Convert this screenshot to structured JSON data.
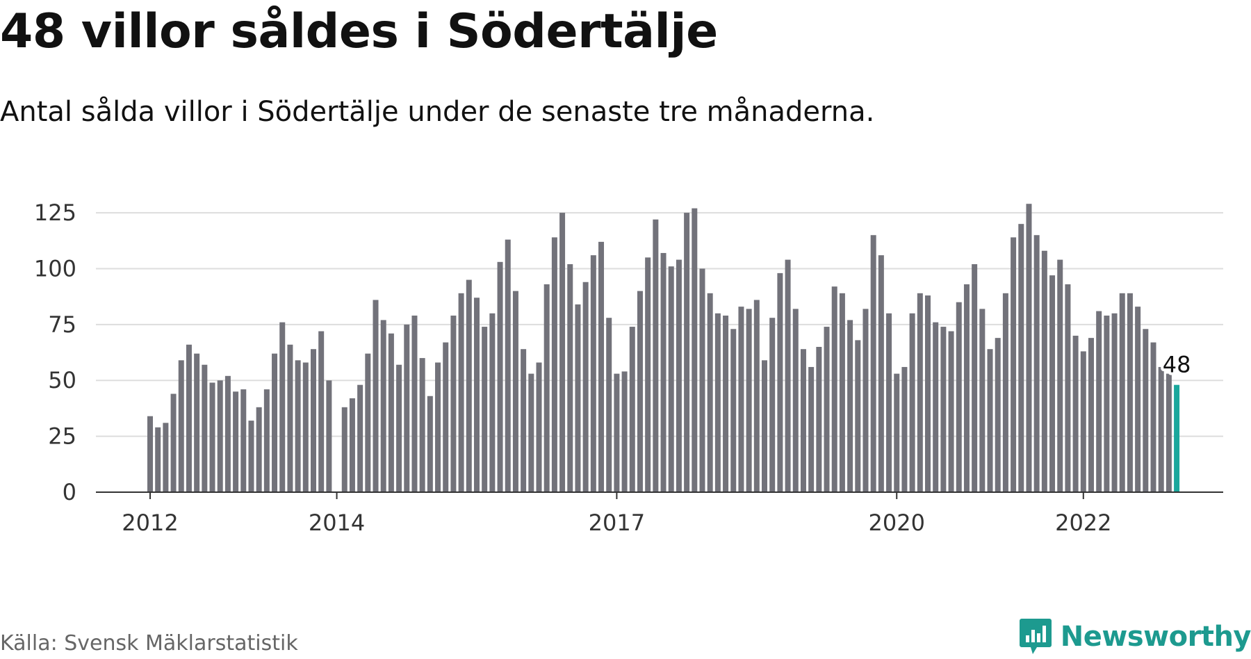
{
  "title": "48 villor såldes i Södertälje",
  "subtitle": "Antal sålda villor i Södertälje under de senaste tre månaderna.",
  "source": "Källa: Svensk Mäklarstatistik",
  "brand": {
    "name": "Newsworthy",
    "icon": "newsworthy-logo-icon",
    "color": "#1d9a8f"
  },
  "colors": {
    "bar": "#72727a",
    "highlight": "#1aa79c",
    "grid": "#dddddd",
    "axis": "#333333"
  },
  "chart_data": {
    "type": "bar",
    "title": "48 villor såldes i Södertälje",
    "subtitle": "Antal sålda villor i Södertälje under de senaste tre månaderna.",
    "ylim": [
      0,
      130
    ],
    "yticks": [
      0,
      25,
      50,
      75,
      100,
      125
    ],
    "ytick_labels": [
      "0",
      "25",
      "50",
      "75",
      "100",
      "125"
    ],
    "grid": true,
    "x_start": "2012-01",
    "x_end": "2023-02",
    "xticks": [
      {
        "x": "2012-01",
        "label": "2012"
      },
      {
        "x": "2014-01",
        "label": "2014"
      },
      {
        "x": "2017-01",
        "label": "2017"
      },
      {
        "x": "2020-01",
        "label": "2020"
      },
      {
        "x": "2022-01",
        "label": "2022"
      }
    ],
    "series": [
      {
        "x": [
          "2012-01",
          "2012-02",
          "2012-03",
          "2012-04",
          "2012-05",
          "2012-06",
          "2012-07",
          "2012-08",
          "2012-09",
          "2012-10",
          "2012-11",
          "2012-12",
          "2013-01",
          "2013-02",
          "2013-03",
          "2013-04",
          "2013-05",
          "2013-06",
          "2013-07",
          "2013-08",
          "2013-09",
          "2013-10",
          "2013-11",
          "2013-12",
          "2014-01",
          "2014-02",
          "2014-03",
          "2014-04",
          "2014-05",
          "2014-06",
          "2014-07",
          "2014-08",
          "2014-09",
          "2014-10",
          "2014-11",
          "2014-12",
          "2015-01",
          "2015-02",
          "2015-03",
          "2015-04",
          "2015-05",
          "2015-06",
          "2015-07",
          "2015-08",
          "2015-09",
          "2015-10",
          "2015-11",
          "2015-12",
          "2016-01",
          "2016-02",
          "2016-03",
          "2016-04",
          "2016-05",
          "2016-06",
          "2016-07",
          "2016-08",
          "2016-09",
          "2016-10",
          "2016-11",
          "2016-12",
          "2017-01",
          "2017-02",
          "2017-03",
          "2017-04",
          "2017-05",
          "2017-06",
          "2017-07",
          "2017-08",
          "2017-09",
          "2017-10",
          "2017-11",
          "2017-12",
          "2018-01",
          "2018-02",
          "2018-03",
          "2018-04",
          "2018-05",
          "2018-06",
          "2018-07",
          "2018-08",
          "2018-09",
          "2018-10",
          "2018-11",
          "2018-12",
          "2019-01",
          "2019-02",
          "2019-03",
          "2019-04",
          "2019-05",
          "2019-06",
          "2019-07",
          "2019-08",
          "2019-09",
          "2019-10",
          "2019-11",
          "2019-12",
          "2020-01",
          "2020-02",
          "2020-03",
          "2020-04",
          "2020-05",
          "2020-06",
          "2020-07",
          "2020-08",
          "2020-09",
          "2020-10",
          "2020-11",
          "2020-12",
          "2021-01",
          "2021-02",
          "2021-03",
          "2021-04",
          "2021-05",
          "2021-06",
          "2021-07",
          "2021-08",
          "2021-09",
          "2021-10",
          "2021-11",
          "2021-12",
          "2022-01",
          "2022-02",
          "2022-03",
          "2022-04",
          "2022-05",
          "2022-06",
          "2022-07",
          "2022-08",
          "2022-09",
          "2022-10",
          "2022-11",
          "2022-12",
          "2023-01"
        ],
        "values": [
          34,
          29,
          31,
          44,
          59,
          66,
          62,
          57,
          49,
          50,
          52,
          45,
          46,
          32,
          38,
          46,
          62,
          76,
          66,
          59,
          58,
          64,
          72,
          50,
          null,
          38,
          42,
          48,
          62,
          86,
          77,
          71,
          57,
          75,
          79,
          60,
          43,
          58,
          67,
          79,
          89,
          95,
          87,
          74,
          80,
          103,
          113,
          90,
          64,
          53,
          58,
          93,
          114,
          125,
          102,
          84,
          94,
          106,
          112,
          78,
          53,
          54,
          74,
          90,
          105,
          122,
          107,
          101,
          104,
          125,
          127,
          100,
          89,
          80,
          79,
          73,
          83,
          82,
          86,
          59,
          78,
          98,
          104,
          82,
          64,
          56,
          65,
          74,
          92,
          89,
          77,
          68,
          82,
          115,
          106,
          80,
          53,
          56,
          80,
          89,
          88,
          76,
          74,
          72,
          85,
          93,
          102,
          82,
          64,
          69,
          89,
          114,
          120,
          129,
          115,
          108,
          97,
          104,
          93,
          70,
          63,
          69,
          81,
          79,
          80,
          89,
          89,
          83,
          73,
          67,
          56,
          53,
          48
        ]
      }
    ],
    "highlight": {
      "x": "2023-01",
      "value": 48,
      "label": "48"
    }
  }
}
